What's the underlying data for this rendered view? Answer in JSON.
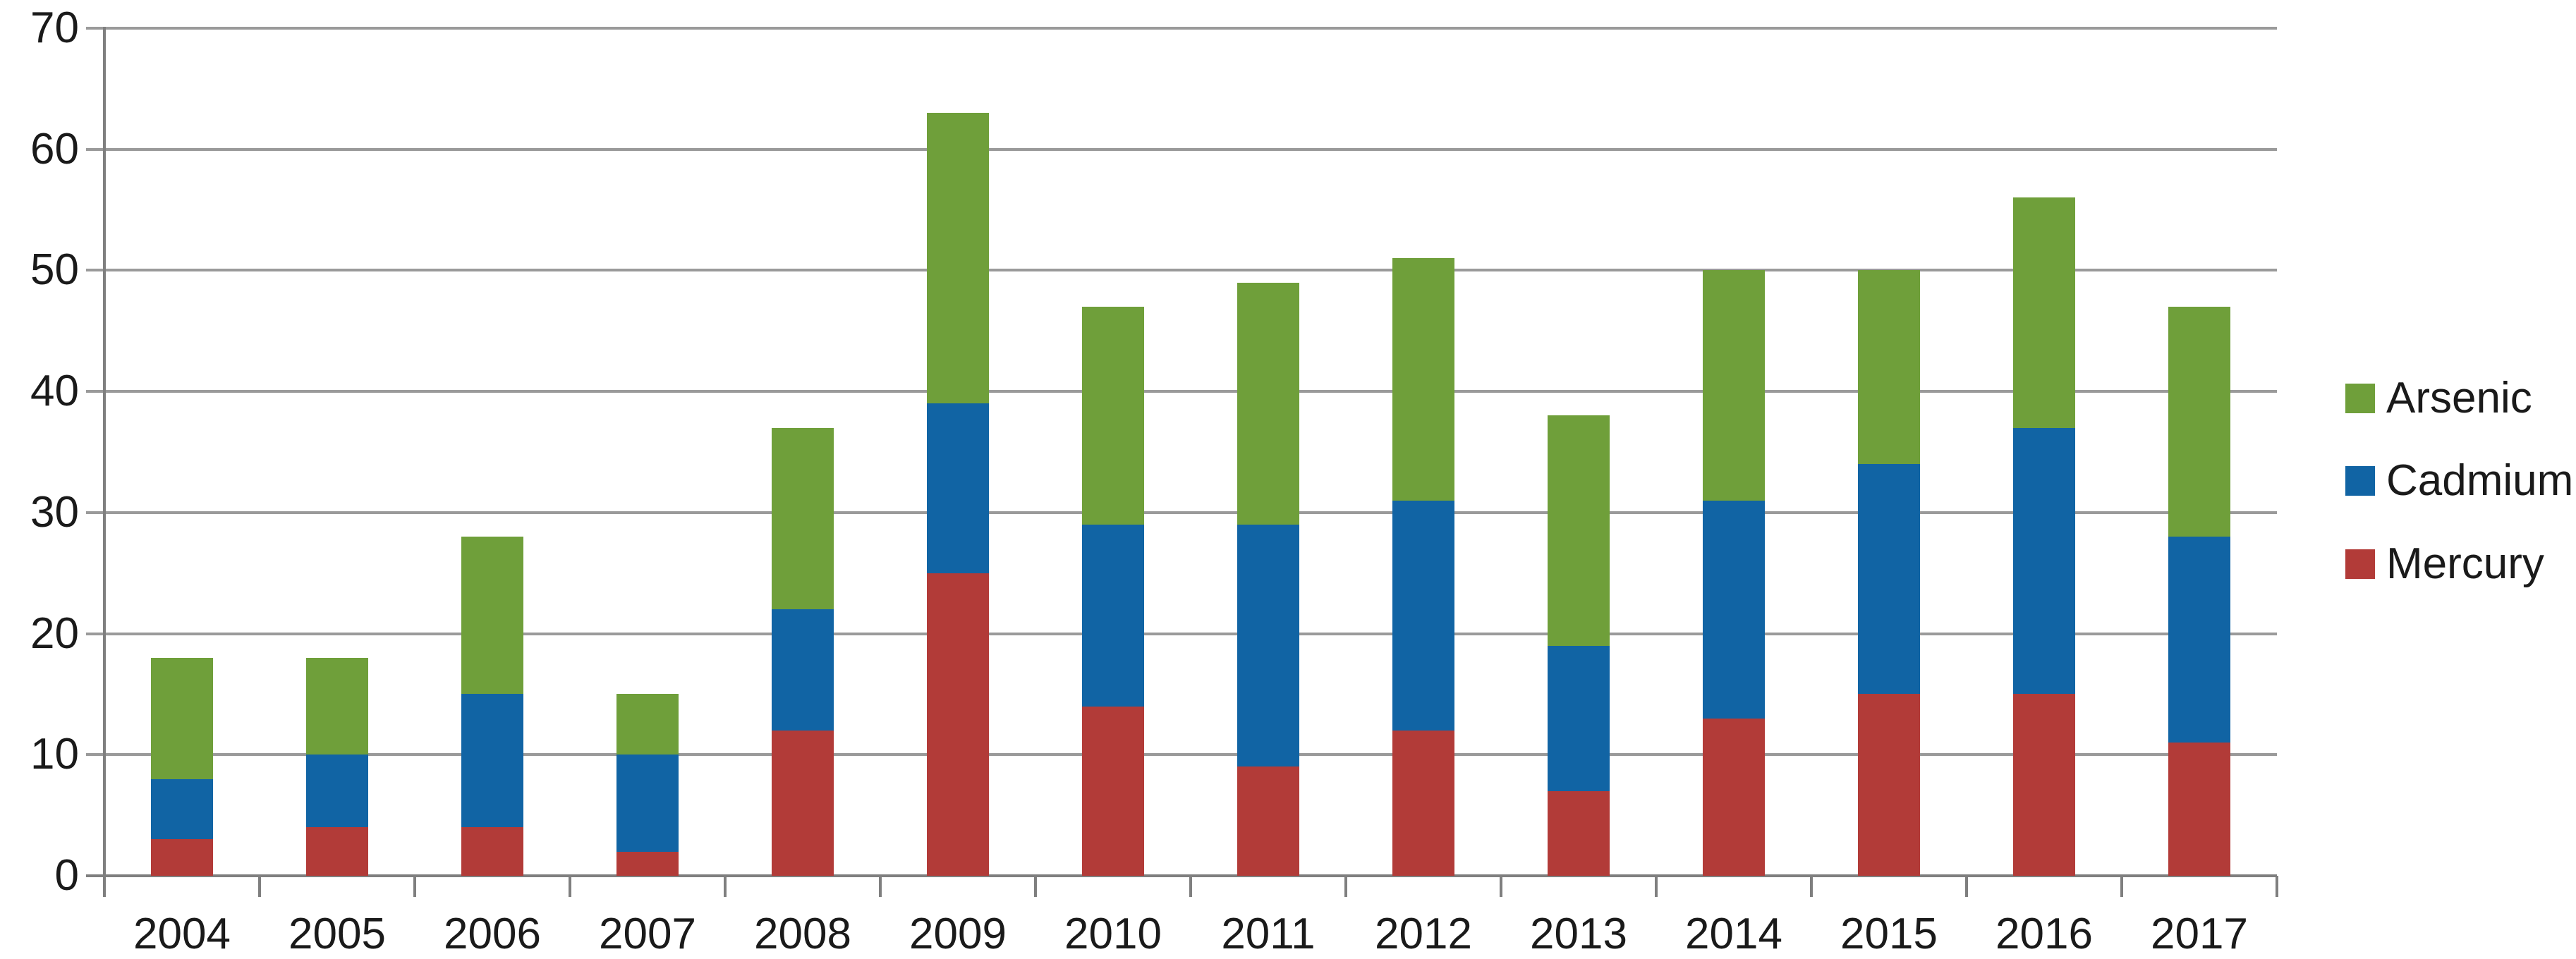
{
  "chart_data": {
    "type": "bar",
    "stacked": true,
    "title": "",
    "xlabel": "",
    "ylabel": "",
    "categories": [
      "2004",
      "2005",
      "2006",
      "2007",
      "2008",
      "2009",
      "2010",
      "2011",
      "2012",
      "2013",
      "2014",
      "2015",
      "2016",
      "2017"
    ],
    "series": [
      {
        "name": "Mercury",
        "color": "#B23B38",
        "values": [
          3,
          4,
          4,
          2,
          12,
          25,
          14,
          9,
          12,
          7,
          13,
          15,
          15,
          11
        ]
      },
      {
        "name": "Cadmium",
        "color": "#1164A4",
        "values": [
          5,
          6,
          11,
          8,
          10,
          14,
          15,
          20,
          19,
          12,
          18,
          19,
          22,
          17
        ]
      },
      {
        "name": "Arsenic",
        "color": "#6F9F3A",
        "values": [
          10,
          8,
          13,
          5,
          15,
          24,
          18,
          20,
          20,
          19,
          19,
          16,
          19,
          19
        ]
      }
    ],
    "stack_totals": [
      18,
      18,
      28,
      15,
      37,
      63,
      47,
      49,
      51,
      38,
      50,
      50,
      56,
      47
    ],
    "ylim": [
      0,
      70
    ],
    "y_ticks": [
      "0",
      "10",
      "20",
      "30",
      "40",
      "50",
      "60",
      "70"
    ],
    "grid": true,
    "legend": {
      "position": "right",
      "labels": [
        "Arsenic",
        "Cadmium",
        "Mercury"
      ]
    }
  },
  "style_colors": {
    "background": "#FFFFFF",
    "gridline": "#9A9A9A",
    "axis": "#7F7F7F",
    "text": "#1A1A1A",
    "arsenic_green": "#6F9F3A",
    "cadmium_blue": "#1164A4",
    "mercury_red": "#B23B38"
  }
}
